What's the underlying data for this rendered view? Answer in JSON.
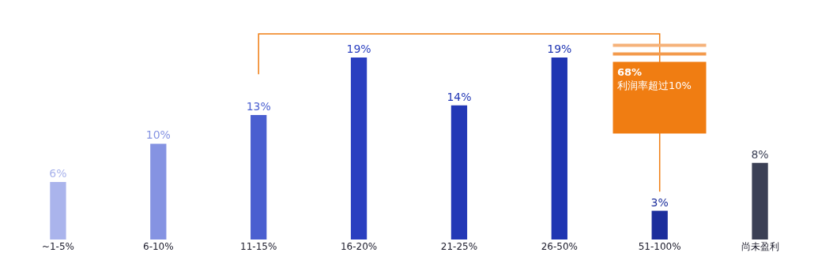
{
  "chart_data": {
    "type": "bar",
    "categories": [
      "~1-5%",
      "6-10%",
      "11-15%",
      "16-20%",
      "21-25%",
      "26-50%",
      "51-100%",
      "尚未盈利"
    ],
    "values": [
      6,
      10,
      13,
      19,
      14,
      19,
      3,
      8
    ],
    "value_labels": [
      "6%",
      "10%",
      "13%",
      "19%",
      "14%",
      "19%",
      "3%",
      "8%"
    ],
    "colors": [
      "#aab4ec",
      "#8593e2",
      "#4a5fd0",
      "#2a3fc0",
      "#2338b6",
      "#1f35b2",
      "#1c2e9c",
      "#3b4055"
    ],
    "annotations": [
      "68%\n利润率超过10%"
    ]
  }
}
